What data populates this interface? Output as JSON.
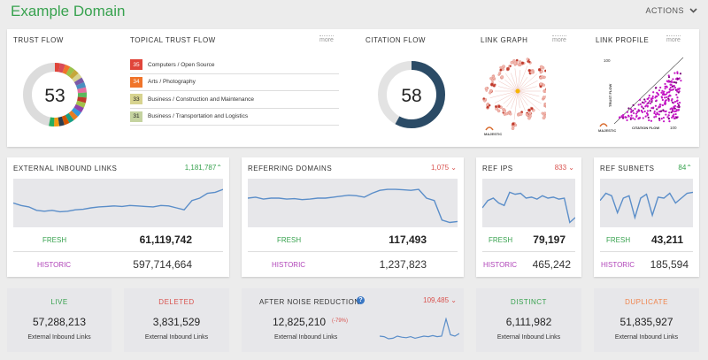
{
  "header": {
    "title": "Example Domain",
    "actions_label": "ACTIONS"
  },
  "trust_flow": {
    "label": "TRUST FLOW",
    "value": "53"
  },
  "topical": {
    "label": "TOPICAL TRUST FLOW",
    "more": "more",
    "items": [
      {
        "score": "35",
        "text": "Computers / Open Source",
        "color": "#e0453a"
      },
      {
        "score": "34",
        "text": "Arts / Photography",
        "color": "#f0742a"
      },
      {
        "score": "33",
        "text": "Business / Construction and Maintenance",
        "color": "#d7d38f"
      },
      {
        "score": "31",
        "text": "Business / Transportation and Logistics",
        "color": "#c5d3a0"
      }
    ]
  },
  "citation_flow": {
    "label": "CITATION FLOW",
    "value": "58"
  },
  "link_graph": {
    "label": "LINK GRAPH",
    "more": "more",
    "brand": "MAJESTIC"
  },
  "link_profile": {
    "label": "LINK PROFILE",
    "more": "more",
    "y_max": "100",
    "x_max": "100",
    "y_axis": "TRUST FLOW",
    "x_axis": "CITATION FLOW",
    "brand": "MAJESTIC"
  },
  "metrics": [
    {
      "label": "EXTERNAL INBOUND LINKS",
      "delta": "1,181,787",
      "delta_dir": "up",
      "fresh_label": "FRESH",
      "fresh": "61,119,742",
      "historic_label": "HISTORIC",
      "historic": "597,714,664"
    },
    {
      "label": "REFERRING DOMAINS",
      "delta": "1,075",
      "delta_dir": "down",
      "fresh_label": "FRESH",
      "fresh": "117,493",
      "historic_label": "HISTORIC",
      "historic": "1,237,823"
    },
    {
      "label": "REF IPS",
      "delta": "833",
      "delta_dir": "down",
      "fresh_label": "FRESH",
      "fresh": "79,197",
      "historic_label": "HISTORIC",
      "historic": "465,242"
    },
    {
      "label": "REF SUBNETS",
      "delta": "84",
      "delta_dir": "up",
      "fresh_label": "FRESH",
      "fresh": "43,211",
      "historic_label": "HISTORIC",
      "historic": "185,594"
    }
  ],
  "bottom": {
    "live": {
      "label": "LIVE",
      "value": "57,288,213",
      "sub": "External Inbound Links"
    },
    "deleted": {
      "label": "DELETED",
      "value": "3,831,529",
      "sub": "External Inbound Links"
    },
    "noise": {
      "label": "AFTER NOISE REDUCTION",
      "info": "?",
      "delta": "109,485",
      "value": "12,825,210",
      "pct": "(-79%)",
      "sub": "External Inbound Links"
    },
    "distinct": {
      "label": "DISTINCT",
      "value": "6,111,982",
      "sub": "External Inbound Links"
    },
    "duplicate": {
      "label": "DUPLICATE",
      "value": "51,835,927",
      "sub": "External Inbound Links"
    }
  }
}
